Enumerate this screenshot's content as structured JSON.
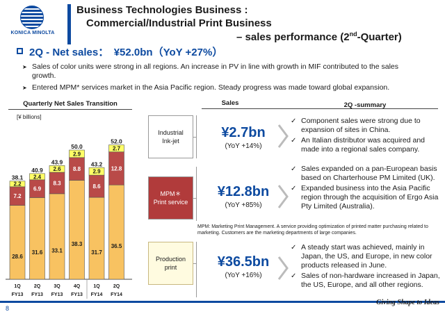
{
  "brand": {
    "name": "KONICA MINOLTA"
  },
  "title": {
    "line1": "Business Technologies Business :",
    "line2": "Commercial/Industrial Print Business",
    "line3_prefix": "– sales performance (2",
    "line3_sup": "nd",
    "line3_suffix": "-Quarter)"
  },
  "section": {
    "heading": "2Q - Net sales：　¥52.0bn（YoY +27%）",
    "bullets": [
      "Sales of color units were strong in all regions. An increase in PV in line with growth in MIF contributed to the sales growth.",
      "Entered MPM* services market in the Asia Pacific region. Steady progress was made toward global expansion."
    ]
  },
  "chart_data": {
    "type": "bar",
    "stacked": true,
    "title": "Quarterly Net Sales Transition",
    "unit": "[¥ billions]",
    "categories": [
      [
        "1Q",
        "FY13"
      ],
      [
        "2Q",
        "FY13"
      ],
      [
        "3Q",
        "FY13"
      ],
      [
        "4Q",
        "FY13"
      ],
      [
        "1Q",
        "FY14"
      ],
      [
        "2Q",
        "FY14"
      ]
    ],
    "totals": [
      38.1,
      40.9,
      43.9,
      50.0,
      43.2,
      52.0
    ],
    "series": [
      {
        "values": [
          28.6,
          31.6,
          33.1,
          38.3,
          31.7,
          36.5
        ],
        "color": "#f8c261"
      },
      {
        "values": [
          7.2,
          6.9,
          8.3,
          8.8,
          8.6,
          12.8
        ],
        "color": "#b94a48"
      },
      {
        "values": [
          2.2,
          2.4,
          2.6,
          2.9,
          2.9,
          2.7
        ],
        "color": "#ffff66"
      }
    ],
    "ylim": [
      0,
      55
    ]
  },
  "sales": {
    "header": "Sales",
    "segments": [
      {
        "label": "Industrial\nInk-jet",
        "amount": "¥2.7bn",
        "yoy": "(YoY +14%)"
      },
      {
        "label": "MPM＊\nPrint service",
        "amount": "¥12.8bn",
        "yoy": "(YoY +85%)"
      },
      {
        "label": "Production\nprint",
        "amount": "¥36.5bn",
        "yoy": "(YoY +16%)"
      }
    ]
  },
  "summary": {
    "header": "2Q -summary",
    "groups": [
      [
        "Component sales were strong due to expansion of sites in China.",
        "An Italian distributor was acquired and made into a regional sales company."
      ],
      [
        "Sales expanded on a pan-European basis based on Charterhouse PM Limited (UK).",
        "Expanded business into the Asia Pacific region through the acquisition of Ergo Asia Pty Limited (Australia)."
      ],
      [
        "A steady start was achieved, mainly in Japan, the US, and Europe, in new color products released in June.",
        "Sales of non-hardware increased in Japan, the US, Europe, and all other regions."
      ]
    ]
  },
  "mpm_note": "MPM: Marketing Print Management. A service providing optimization of printed matter purchasing related to marketing. Customers are the marketing departments of large companies.",
  "footer": {
    "page": "8",
    "tagline": "Giving Shape to Ideas"
  }
}
